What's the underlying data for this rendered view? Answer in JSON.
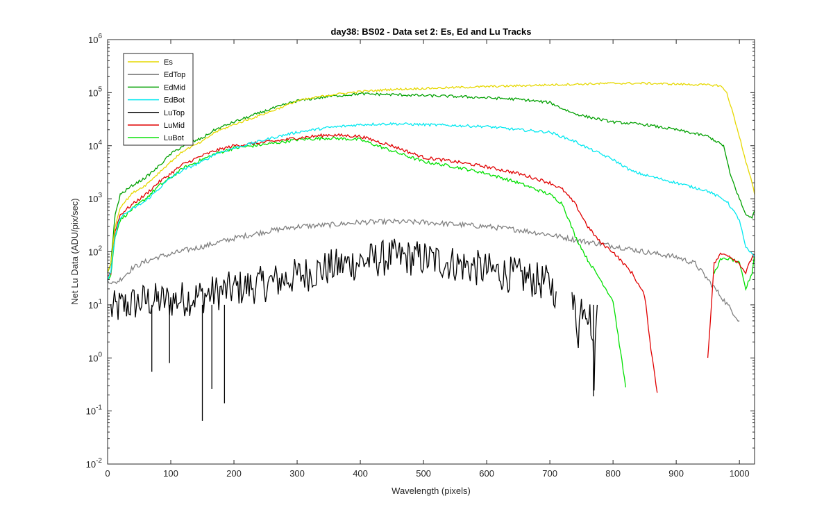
{
  "chart_data": {
    "type": "line",
    "title": "day38: BS02 - Data set 2: Es, Ed and Lu Tracks",
    "xlabel": "Wavelength (pixels)",
    "ylabel": "Net Lu Data (ADU/pix/sec)",
    "xlim": [
      0,
      1024
    ],
    "ylim": [
      0.01,
      1000000
    ],
    "yscale": "log",
    "grid": false,
    "legend_position": "top-left",
    "xticks": [
      0,
      100,
      200,
      300,
      400,
      500,
      600,
      700,
      800,
      900,
      1000
    ],
    "yticks": [
      {
        "value": 0.01,
        "base": "10",
        "exp": "-2"
      },
      {
        "value": 0.1,
        "base": "10",
        "exp": "-1"
      },
      {
        "value": 1,
        "base": "10",
        "exp": "0"
      },
      {
        "value": 10,
        "base": "10",
        "exp": "1"
      },
      {
        "value": 100,
        "base": "10",
        "exp": "2"
      },
      {
        "value": 1000,
        "base": "10",
        "exp": "3"
      },
      {
        "value": 10000,
        "base": "10",
        "exp": "4"
      },
      {
        "value": 100000,
        "base": "10",
        "exp": "5"
      },
      {
        "value": 1000000,
        "base": "10",
        "exp": "6"
      }
    ],
    "series": [
      {
        "name": "Es",
        "color": "#e6d800",
        "noise": 0.02,
        "x": [
          0,
          5,
          12,
          20,
          40,
          60,
          80,
          100,
          120,
          150,
          170,
          200,
          260,
          300,
          350,
          400,
          450,
          500,
          550,
          600,
          650,
          700,
          750,
          800,
          850,
          900,
          950,
          970,
          980,
          990,
          1000,
          1010,
          1020,
          1024
        ],
        "y": [
          40,
          60,
          300,
          700,
          1300,
          1800,
          3000,
          5000,
          8000,
          12000,
          18000,
          25000,
          45000,
          70000,
          90000,
          105000,
          115000,
          120000,
          125000,
          130000,
          135000,
          140000,
          145000,
          150000,
          150000,
          145000,
          140000,
          135000,
          100000,
          40000,
          15000,
          5000,
          2000,
          1200
        ]
      },
      {
        "name": "EdTop",
        "color": "#808080",
        "noise": 0.05,
        "x": [
          0,
          10,
          20,
          40,
          60,
          80,
          100,
          120,
          150,
          200,
          250,
          300,
          350,
          400,
          450,
          500,
          550,
          600,
          650,
          700,
          750,
          800,
          850,
          900,
          930,
          950,
          970,
          1000
        ],
        "y": [
          30,
          25,
          30,
          50,
          65,
          80,
          90,
          105,
          125,
          180,
          240,
          300,
          320,
          360,
          370,
          360,
          330,
          300,
          260,
          210,
          160,
          130,
          100,
          80,
          60,
          30,
          15,
          5
        ]
      },
      {
        "name": "EdMid",
        "color": "#00a000",
        "noise": 0.025,
        "x": [
          0,
          5,
          12,
          20,
          40,
          60,
          80,
          100,
          120,
          150,
          170,
          200,
          260,
          300,
          350,
          400,
          450,
          500,
          550,
          600,
          650,
          700,
          720,
          740,
          760,
          800,
          850,
          900,
          950,
          975,
          985,
          1000,
          1010,
          1020,
          1024
        ],
        "y": [
          40,
          60,
          500,
          1200,
          1800,
          2500,
          4000,
          7000,
          10000,
          14000,
          20000,
          28000,
          50000,
          70000,
          85000,
          95000,
          92000,
          88000,
          85000,
          80000,
          75000,
          65000,
          50000,
          40000,
          35000,
          28000,
          25000,
          20000,
          15000,
          10000,
          3000,
          1000,
          500,
          450,
          600
        ]
      },
      {
        "name": "EdBot",
        "color": "#00e8f0",
        "noise": 0.025,
        "x": [
          0,
          5,
          12,
          20,
          40,
          60,
          80,
          100,
          120,
          150,
          170,
          200,
          260,
          300,
          350,
          400,
          450,
          500,
          550,
          600,
          650,
          700,
          740,
          760,
          800,
          830,
          850,
          900,
          950,
          980,
          1000,
          1010,
          1024
        ],
        "y": [
          30,
          40,
          200,
          450,
          650,
          900,
          1500,
          2500,
          3500,
          5000,
          7000,
          9000,
          14000,
          18000,
          22000,
          25000,
          26000,
          25000,
          24000,
          23000,
          20000,
          18000,
          12000,
          9000,
          5500,
          3300,
          2800,
          2000,
          1400,
          900,
          400,
          120,
          80
        ]
      },
      {
        "name": "LuTop",
        "color": "#000000",
        "noise": 0.35,
        "x": [
          5,
          30,
          60,
          100,
          150,
          200,
          250,
          300,
          350,
          400,
          450,
          500,
          550,
          600,
          650,
          700,
          710
        ],
        "y": [
          8,
          10,
          12,
          12,
          15,
          20,
          25,
          35,
          50,
          65,
          80,
          75,
          60,
          45,
          35,
          25,
          18
        ],
        "segments": [
          {
            "x": [
              735,
              740,
              745,
              750,
              755,
              760,
              765,
              770,
              775
            ],
            "y": [
              10,
              8,
              3,
              10,
              12,
              8,
              5,
              0.5,
              10
            ]
          }
        ],
        "spikes": [
          {
            "x": 70,
            "y": 0.55
          },
          {
            "x": 98,
            "y": 0.8
          },
          {
            "x": 150,
            "y": 0.065
          },
          {
            "x": 165,
            "y": 0.26
          },
          {
            "x": 185,
            "y": 0.14
          },
          {
            "x": 769,
            "y": 0.19
          }
        ]
      },
      {
        "name": "LuMid",
        "color": "#e00000",
        "noise": 0.03,
        "x": [
          0,
          5,
          12,
          20,
          40,
          60,
          80,
          100,
          120,
          150,
          170,
          200,
          260,
          300,
          350,
          400,
          450,
          500,
          550,
          600,
          650,
          700,
          720,
          740,
          760,
          780,
          800,
          830,
          850,
          860,
          870
        ],
        "y": [
          35,
          40,
          250,
          500,
          800,
          1200,
          2000,
          3000,
          4500,
          6500,
          8000,
          10000,
          12000,
          14000,
          16000,
          15000,
          10000,
          6000,
          5000,
          4000,
          3000,
          2000,
          1500,
          800,
          300,
          150,
          100,
          40,
          15,
          1.5,
          0.22
        ],
        "segments": [
          {
            "x": [
              950,
              960,
              970,
              980,
              990,
              1000,
              1010,
              1020,
              1024
            ],
            "y": [
              1,
              60,
              90,
              90,
              75,
              60,
              40,
              80,
              90
            ]
          }
        ]
      },
      {
        "name": "LuBot",
        "color": "#00e000",
        "noise": 0.03,
        "x": [
          0,
          5,
          12,
          20,
          40,
          60,
          80,
          100,
          120,
          150,
          170,
          200,
          260,
          300,
          350,
          400,
          450,
          500,
          550,
          600,
          650,
          700,
          720,
          740,
          760,
          780,
          800,
          820
        ],
        "y": [
          30,
          35,
          200,
          400,
          650,
          1000,
          1700,
          2500,
          3800,
          5500,
          7000,
          9000,
          11000,
          13000,
          14000,
          13000,
          8000,
          5000,
          4000,
          3000,
          2000,
          1200,
          800,
          200,
          70,
          30,
          12,
          0.28
        ],
        "segments": [
          {
            "x": [
              960,
              970,
              980,
              990,
              1000,
              1010,
              1020,
              1024
            ],
            "y": [
              40,
              70,
              75,
              70,
              60,
              20,
              40,
              90
            ]
          }
        ]
      }
    ]
  }
}
